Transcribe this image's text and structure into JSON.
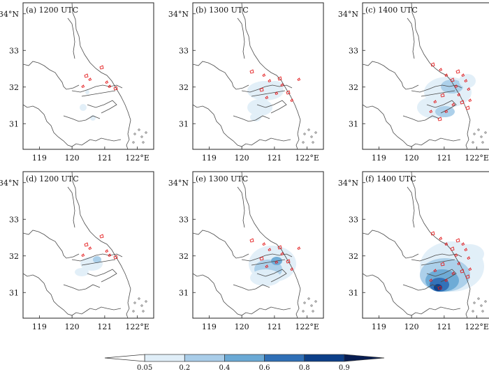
{
  "panels": [
    {
      "label": "(a) 1200 UTC",
      "fill": [],
      "obs": "a"
    },
    {
      "label": "(b) 1300 UTC",
      "fill": [],
      "obs": "b"
    },
    {
      "label": "(c) 1400 UTC",
      "fill": [],
      "obs": "c"
    },
    {
      "label": "(d) 1200 UTC",
      "fill": [],
      "obs": "a"
    },
    {
      "label": "(e) 1300 UTC",
      "fill": [],
      "obs": "b"
    },
    {
      "label": "(f) 1400 UTC",
      "fill": [],
      "obs": "c"
    }
  ],
  "axes": {
    "x_ticks": [
      "119",
      "120",
      "121",
      "122°E"
    ],
    "x_values": [
      119,
      120,
      121,
      122
    ],
    "y_ticks": [
      "31",
      "32",
      "33",
      "34°N"
    ],
    "y_values": [
      31,
      32,
      33,
      34
    ]
  },
  "colorbar": {
    "levels": [
      "0.05",
      "0.2",
      "0.4",
      "0.6",
      "0.8",
      "0.9"
    ],
    "colors": [
      "#ffffff",
      "#e0eef8",
      "#a9cde9",
      "#6aa9d5",
      "#2f6fb6",
      "#0c3f88",
      "#071d52"
    ]
  },
  "chart_data": {
    "type": "heatmap",
    "panels": [
      "(a) 1200 UTC",
      "(b) 1300 UTC",
      "(c) 1400 UTC",
      "(d) 1200 UTC",
      "(e) 1300 UTC",
      "(f) 1400 UTC"
    ],
    "xlim": [
      118.5,
      122.5
    ],
    "ylim": [
      30.3,
      34.3
    ],
    "levels": [
      0.05,
      0.2,
      0.4,
      0.6,
      0.8,
      0.9
    ],
    "observed_contour_color": "#e41a1c",
    "coastline_color": "#555555"
  }
}
